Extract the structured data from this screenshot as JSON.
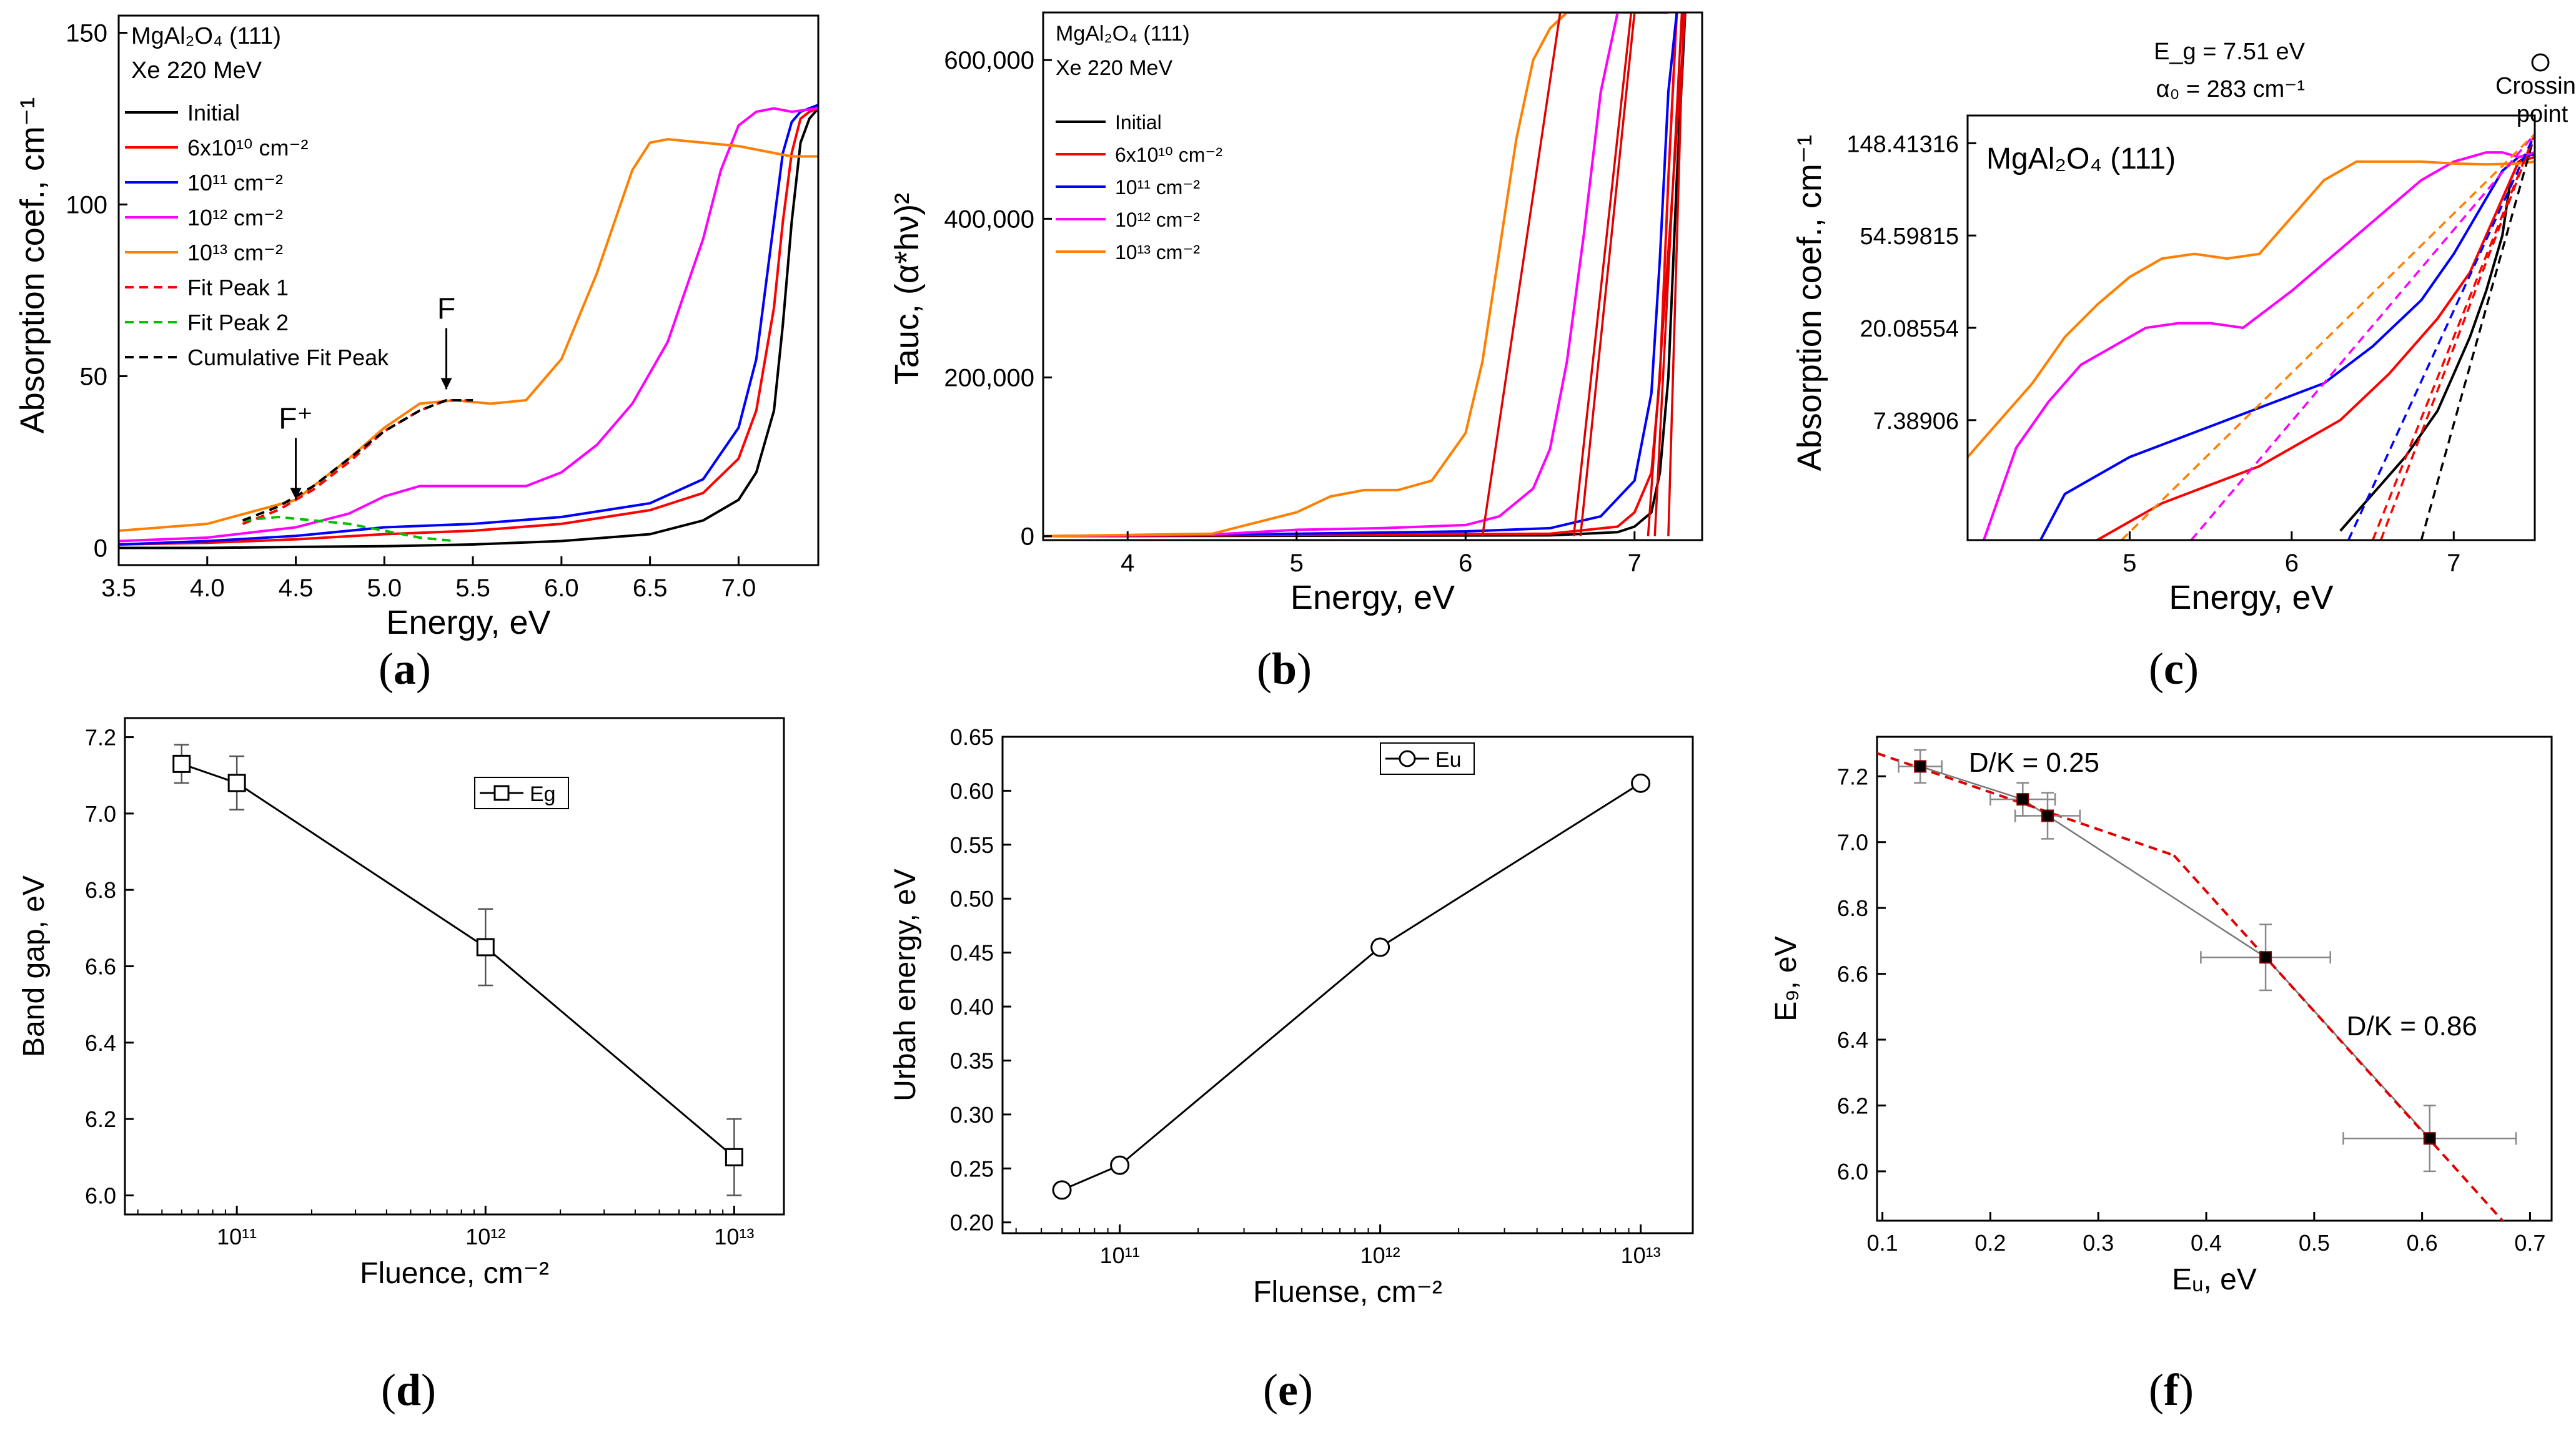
{
  "chart_data": [
    {
      "id": "a",
      "type": "line",
      "xlabel": "Energy, eV",
      "ylabel": "Absorption coef., cm⁻¹",
      "xlim": [
        3.5,
        7.45
      ],
      "ylim": [
        -5,
        155
      ],
      "xticks": [
        3.5,
        4.0,
        4.5,
        5.0,
        5.5,
        6.0,
        6.5,
        7.0
      ],
      "yticks": [
        0,
        50,
        100,
        150
      ],
      "info": [
        "MgAl₂O₄ (111)",
        "Xe 220 MeV"
      ],
      "legend": [
        "Initial",
        "6x10¹⁰ cm⁻²",
        "10¹¹ cm⁻²",
        "10¹² cm⁻²",
        "10¹³ cm⁻²",
        "Fit Peak 1",
        "Fit Peak 2",
        "Cumulative Fit Peak"
      ],
      "annotations": [
        {
          "text": "F⁺",
          "x": 4.5,
          "y": 12
        },
        {
          "text": "F",
          "x": 5.35,
          "y": 44
        }
      ],
      "series": [
        {
          "name": "Initial",
          "color": "#000000",
          "x": [
            3.5,
            4.0,
            4.5,
            5.0,
            5.5,
            6.0,
            6.5,
            6.8,
            7.0,
            7.1,
            7.2,
            7.25,
            7.3,
            7.35,
            7.4,
            7.45
          ],
          "y": [
            0,
            0,
            0.3,
            0.5,
            1,
            2,
            4,
            8,
            14,
            22,
            40,
            65,
            95,
            118,
            125,
            128
          ]
        },
        {
          "name": "6x10¹⁰ cm⁻²",
          "color": "#ff0000",
          "x": [
            3.5,
            4.0,
            4.5,
            5.0,
            5.5,
            6.0,
            6.5,
            6.8,
            7.0,
            7.1,
            7.2,
            7.25,
            7.3,
            7.35,
            7.4,
            7.45
          ],
          "y": [
            1,
            1.5,
            2.5,
            4,
            5,
            7,
            11,
            16,
            26,
            40,
            70,
            95,
            115,
            125,
            127,
            128
          ]
        },
        {
          "name": "10¹¹ cm⁻²",
          "color": "#0000ff",
          "x": [
            3.5,
            4.0,
            4.5,
            5.0,
            5.5,
            6.0,
            6.5,
            6.8,
            7.0,
            7.1,
            7.2,
            7.25,
            7.3,
            7.35,
            7.4,
            7.45
          ],
          "y": [
            1,
            2,
            3.5,
            6,
            7,
            9,
            13,
            20,
            35,
            55,
            95,
            115,
            124,
            127,
            128,
            129
          ]
        },
        {
          "name": "10¹² cm⁻²",
          "color": "#ff00ff",
          "x": [
            3.5,
            4.0,
            4.5,
            4.8,
            5.0,
            5.2,
            5.5,
            5.8,
            6.0,
            6.2,
            6.4,
            6.6,
            6.8,
            6.9,
            7.0,
            7.1,
            7.2,
            7.3,
            7.45
          ],
          "y": [
            2,
            3,
            6,
            10,
            15,
            18,
            18,
            18,
            22,
            30,
            42,
            60,
            90,
            110,
            123,
            127,
            128,
            127,
            128
          ]
        },
        {
          "name": "10¹³ cm⁻²",
          "color": "#ff8000",
          "x": [
            3.5,
            4.0,
            4.5,
            4.8,
            5.0,
            5.2,
            5.4,
            5.6,
            5.8,
            6.0,
            6.2,
            6.3,
            6.4,
            6.5,
            6.6,
            6.8,
            7.0,
            7.2,
            7.3,
            7.45
          ],
          "y": [
            5,
            7,
            14,
            26,
            35,
            42,
            43,
            42,
            43,
            55,
            80,
            95,
            110,
            118,
            119,
            118,
            117,
            115,
            114,
            114
          ]
        },
        {
          "name": "Fit Peak 1",
          "color": "#ff0000",
          "dash": true,
          "x": [
            4.2,
            4.4,
            4.6,
            4.8,
            5.0,
            5.2,
            5.35,
            5.5
          ],
          "y": [
            7,
            11,
            17,
            25,
            34,
            40,
            43,
            43
          ]
        },
        {
          "name": "Fit Peak 2",
          "color": "#00c000",
          "dash": true,
          "x": [
            4.2,
            4.4,
            4.6,
            4.8,
            5.0,
            5.2,
            5.4
          ],
          "y": [
            8,
            9,
            8,
            7,
            5,
            3,
            2
          ]
        },
        {
          "name": "Cumulative Fit Peak",
          "color": "#000000",
          "dash": true,
          "x": [
            4.2,
            4.4,
            4.6,
            4.8,
            5.0,
            5.2,
            5.35,
            5.5
          ],
          "y": [
            8,
            12,
            18,
            26,
            34,
            40,
            43,
            43
          ]
        }
      ]
    },
    {
      "id": "b",
      "type": "line",
      "xlabel": "Energy, eV",
      "ylabel": "Tauc, (α*hν)²",
      "xlim": [
        3.5,
        7.4
      ],
      "ylim": [
        -5000,
        660000
      ],
      "xticks": [
        4,
        5,
        6,
        7
      ],
      "yticks": [
        0,
        200000,
        400000,
        600000
      ],
      "ytick_labels": [
        "0",
        "200,000",
        "400,000",
        "600,000"
      ],
      "info": [
        "MgAl₂O₄ (111)",
        "Xe 220 MeV"
      ],
      "legend": [
        "Initial",
        "6x10¹⁰ cm⁻²",
        "10¹¹ cm⁻²",
        "10¹² cm⁻²",
        "10¹³ cm⁻²"
      ],
      "series": [
        {
          "name": "Initial",
          "color": "#000000",
          "x": [
            3.5,
            6.5,
            6.9,
            7.0,
            7.1,
            7.15,
            7.2,
            7.25,
            7.3
          ],
          "y": [
            0,
            1000,
            5000,
            12000,
            30000,
            80000,
            200000,
            450000,
            660000
          ]
        },
        {
          "name": "6x10¹⁰ cm⁻²",
          "color": "#ff0000",
          "x": [
            3.5,
            6.5,
            6.9,
            7.0,
            7.1,
            7.15,
            7.2,
            7.25
          ],
          "y": [
            0,
            3000,
            12000,
            30000,
            80000,
            200000,
            450000,
            660000
          ]
        },
        {
          "name": "10¹¹ cm⁻²",
          "color": "#0000ff",
          "x": [
            3.5,
            5.0,
            6.0,
            6.5,
            6.8,
            7.0,
            7.1,
            7.15,
            7.2,
            7.25
          ],
          "y": [
            0,
            3000,
            6000,
            10000,
            25000,
            70000,
            180000,
            350000,
            560000,
            660000
          ]
        },
        {
          "name": "10¹² cm⁻²",
          "color": "#ff00ff",
          "x": [
            3.5,
            4.5,
            5.0,
            5.5,
            6.0,
            6.2,
            6.4,
            6.5,
            6.6,
            6.7,
            6.8,
            6.9,
            7.0,
            7.1,
            7.2
          ],
          "y": [
            0,
            2000,
            8000,
            10000,
            14000,
            25000,
            60000,
            110000,
            220000,
            380000,
            560000,
            660000,
            660000,
            660000,
            660000
          ]
        },
        {
          "name": "10¹³ cm⁻²",
          "color": "#ff8000",
          "x": [
            3.5,
            4.5,
            5.0,
            5.2,
            5.4,
            5.6,
            5.8,
            6.0,
            6.1,
            6.2,
            6.3,
            6.4,
            6.5,
            6.6,
            6.8,
            7.0
          ],
          "y": [
            0,
            3000,
            30000,
            50000,
            58000,
            58000,
            70000,
            130000,
            220000,
            360000,
            500000,
            600000,
            640000,
            660000,
            660000,
            660000
          ]
        }
      ],
      "fit_lines": [
        {
          "x1": 6.1,
          "x2": 6.56
        },
        {
          "x1": 6.64,
          "x2": 6.98
        },
        {
          "x1": 6.68,
          "x2": 7.0
        },
        {
          "x1": 7.08,
          "x2": 7.3
        },
        {
          "x1": 7.12,
          "x2": 7.28
        },
        {
          "x1": 7.2,
          "x2": 7.29
        }
      ]
    },
    {
      "id": "c",
      "type": "line",
      "xlabel": "Energy, eV",
      "ylabel": "Absorption coef., cm⁻¹",
      "xlim": [
        4.0,
        7.5
      ],
      "ylim_ln": [
        0.7,
        5.3
      ],
      "xticks": [
        5,
        6,
        7
      ],
      "yticks_ln": [
        2,
        3,
        4,
        5
      ],
      "ytick_labels": [
        "7.38906",
        "20.08554",
        "54.59815",
        "148.41316"
      ],
      "info": [
        "MgAl₂O₄ (111)"
      ],
      "eg_label": "E_g = 7.51 eV",
      "alpha_label": "α₀ = 283 cm⁻¹",
      "crossing_label": [
        "Crossing",
        "point"
      ],
      "series": [
        {
          "name": "Initial",
          "color": "#000000",
          "x": [
            6.3,
            6.5,
            6.7,
            6.9,
            7.0,
            7.1,
            7.2,
            7.3,
            7.35,
            7.4,
            7.5
          ],
          "y_ln": [
            0.8,
            1.2,
            1.6,
            2.1,
            2.5,
            2.9,
            3.4,
            4.0,
            4.6,
            4.8,
            4.9
          ]
        },
        {
          "name": "6x10¹⁰ cm⁻²",
          "color": "#ff0000",
          "x": [
            4.8,
            5.0,
            5.2,
            5.5,
            5.8,
            6.0,
            6.3,
            6.6,
            6.9,
            7.1,
            7.3,
            7.4,
            7.5
          ],
          "y_ln": [
            0.7,
            0.9,
            1.1,
            1.3,
            1.5,
            1.7,
            2.0,
            2.5,
            3.1,
            3.6,
            4.4,
            4.8,
            4.85
          ]
        },
        {
          "name": "10¹¹ cm⁻²",
          "color": "#0000ff",
          "x": [
            4.45,
            4.6,
            4.8,
            5.0,
            5.3,
            5.6,
            5.9,
            6.2,
            6.5,
            6.8,
            7.0,
            7.2,
            7.3,
            7.4,
            7.5
          ],
          "y_ln": [
            0.7,
            1.2,
            1.4,
            1.6,
            1.8,
            2.0,
            2.2,
            2.4,
            2.8,
            3.3,
            3.8,
            4.4,
            4.7,
            4.85,
            4.88
          ]
        },
        {
          "name": "10¹² cm⁻²",
          "color": "#ff00ff",
          "x": [
            4.1,
            4.3,
            4.5,
            4.7,
            4.9,
            5.1,
            5.3,
            5.5,
            5.7,
            6.0,
            6.2,
            6.4,
            6.6,
            6.8,
            7.0,
            7.2,
            7.3,
            7.4,
            7.5
          ],
          "y_ln": [
            0.7,
            1.7,
            2.2,
            2.6,
            2.8,
            3.0,
            3.05,
            3.05,
            3.0,
            3.4,
            3.7,
            4.0,
            4.3,
            4.6,
            4.8,
            4.9,
            4.9,
            4.85,
            4.9
          ]
        },
        {
          "name": "10¹³ cm⁻²",
          "color": "#ff8000",
          "x": [
            4.0,
            4.2,
            4.4,
            4.6,
            4.8,
            5.0,
            5.2,
            5.4,
            5.6,
            5.8,
            6.0,
            6.2,
            6.4,
            6.6,
            6.8,
            7.0,
            7.2,
            7.4,
            7.5
          ],
          "y_ln": [
            1.6,
            2.0,
            2.4,
            2.9,
            3.25,
            3.55,
            3.75,
            3.8,
            3.75,
            3.8,
            4.2,
            4.6,
            4.8,
            4.8,
            4.8,
            4.78,
            4.77,
            4.78,
            4.8
          ]
        }
      ],
      "fit_lines": [
        {
          "color": "#000000",
          "x1": 6.8,
          "y1_ln": 0.7,
          "x2": 7.5,
          "y2_ln": 5.1
        },
        {
          "color": "#ff0000",
          "x1": 6.55,
          "y1_ln": 0.7,
          "x2": 7.5,
          "y2_ln": 5.1
        },
        {
          "color": "#ff0000",
          "x1": 6.5,
          "y1_ln": 0.7,
          "x2": 7.5,
          "y2_ln": 5.1
        },
        {
          "color": "#0000ff",
          "x1": 6.35,
          "y1_ln": 0.7,
          "x2": 7.5,
          "y2_ln": 5.1
        },
        {
          "color": "#ff00ff",
          "x1": 5.38,
          "y1_ln": 0.7,
          "x2": 7.5,
          "y2_ln": 5.1
        },
        {
          "color": "#ff8000",
          "x1": 4.95,
          "y1_ln": 0.7,
          "x2": 7.5,
          "y2_ln": 5.1
        }
      ]
    },
    {
      "id": "d",
      "type": "scatter",
      "xlabel": "Fluence, cm⁻²",
      "ylabel": "Band gap, eV",
      "xscale": "log",
      "xlim_exp": [
        10.55,
        13.2
      ],
      "ylim": [
        5.95,
        7.25
      ],
      "xticks_exp": [
        11,
        12,
        13
      ],
      "xtick_labels": [
        "10¹¹",
        "10¹²",
        "10¹³"
      ],
      "yticks": [
        6.0,
        6.2,
        6.4,
        6.6,
        6.8,
        7.0,
        7.2
      ],
      "legend": [
        "Eg"
      ],
      "points": [
        {
          "fluence": "6x10¹⁰",
          "x_exp": 10.778,
          "y": 7.13,
          "err": 0.05
        },
        {
          "fluence": "10¹¹",
          "x_exp": 11.0,
          "y": 7.08,
          "err": 0.07
        },
        {
          "fluence": "10¹²",
          "x_exp": 12.0,
          "y": 6.65,
          "err": 0.1
        },
        {
          "fluence": "10¹³",
          "x_exp": 13.0,
          "y": 6.1,
          "err": 0.1
        }
      ]
    },
    {
      "id": "e",
      "type": "scatter",
      "xlabel": "Fluense, cm⁻²",
      "ylabel": "Urbah energy, eV",
      "xscale": "log",
      "xlim_exp": [
        10.55,
        13.2
      ],
      "ylim": [
        0.19,
        0.65
      ],
      "xticks_exp": [
        11,
        12,
        13
      ],
      "xtick_labels": [
        "10¹¹",
        "10¹²",
        "10¹³"
      ],
      "yticks": [
        0.2,
        0.25,
        0.3,
        0.35,
        0.4,
        0.45,
        0.5,
        0.55,
        0.6,
        0.65
      ],
      "ytick_labels": [
        "0.20",
        "0.25",
        "0.30",
        "0.35",
        "0.40",
        "0.45",
        "0.50",
        "0.55",
        "0.60",
        "0.65"
      ],
      "legend": [
        "Eu"
      ],
      "points": [
        {
          "fluence": "6x10¹⁰",
          "x_exp": 10.778,
          "y": 0.23
        },
        {
          "fluence": "10¹¹",
          "x_exp": 11.0,
          "y": 0.253
        },
        {
          "fluence": "10¹²",
          "x_exp": 12.0,
          "y": 0.455
        },
        {
          "fluence": "10¹³",
          "x_exp": 13.0,
          "y": 0.607
        }
      ]
    },
    {
      "id": "f",
      "type": "scatter",
      "xlabel": "Eᵤ, eV",
      "ylabel": "E₉, eV",
      "xlim": [
        0.095,
        0.72
      ],
      "ylim": [
        5.85,
        7.32
      ],
      "xticks": [
        0.1,
        0.2,
        0.3,
        0.4,
        0.5,
        0.6,
        0.7
      ],
      "yticks": [
        6.0,
        6.2,
        6.4,
        6.6,
        6.8,
        7.0,
        7.2
      ],
      "annotations": [
        {
          "text": "D/K = 0.25",
          "x": 0.18,
          "y": 7.24
        },
        {
          "text": "D/K = 0.86",
          "x": 0.53,
          "y": 6.44
        }
      ],
      "points": [
        {
          "x": 0.135,
          "y": 7.23,
          "xerr": 0.02,
          "yerr": 0.05
        },
        {
          "x": 0.23,
          "y": 7.13,
          "xerr": 0.03,
          "yerr": 0.05
        },
        {
          "x": 0.253,
          "y": 7.08,
          "xerr": 0.03,
          "yerr": 0.07
        },
        {
          "x": 0.455,
          "y": 6.65,
          "xerr": 0.06,
          "yerr": 0.1
        },
        {
          "x": 0.607,
          "y": 6.1,
          "xerr": 0.08,
          "yerr": 0.1
        }
      ],
      "fit_lines": [
        {
          "x": [
            0.095,
            0.37
          ],
          "y": [
            7.27,
            6.96
          ]
        },
        {
          "x": [
            0.37,
            0.68
          ],
          "y": [
            6.96,
            5.83
          ]
        }
      ]
    }
  ],
  "captions": {
    "a": "a",
    "b": "b",
    "c": "c",
    "d": "d",
    "e": "e",
    "f": "f"
  }
}
